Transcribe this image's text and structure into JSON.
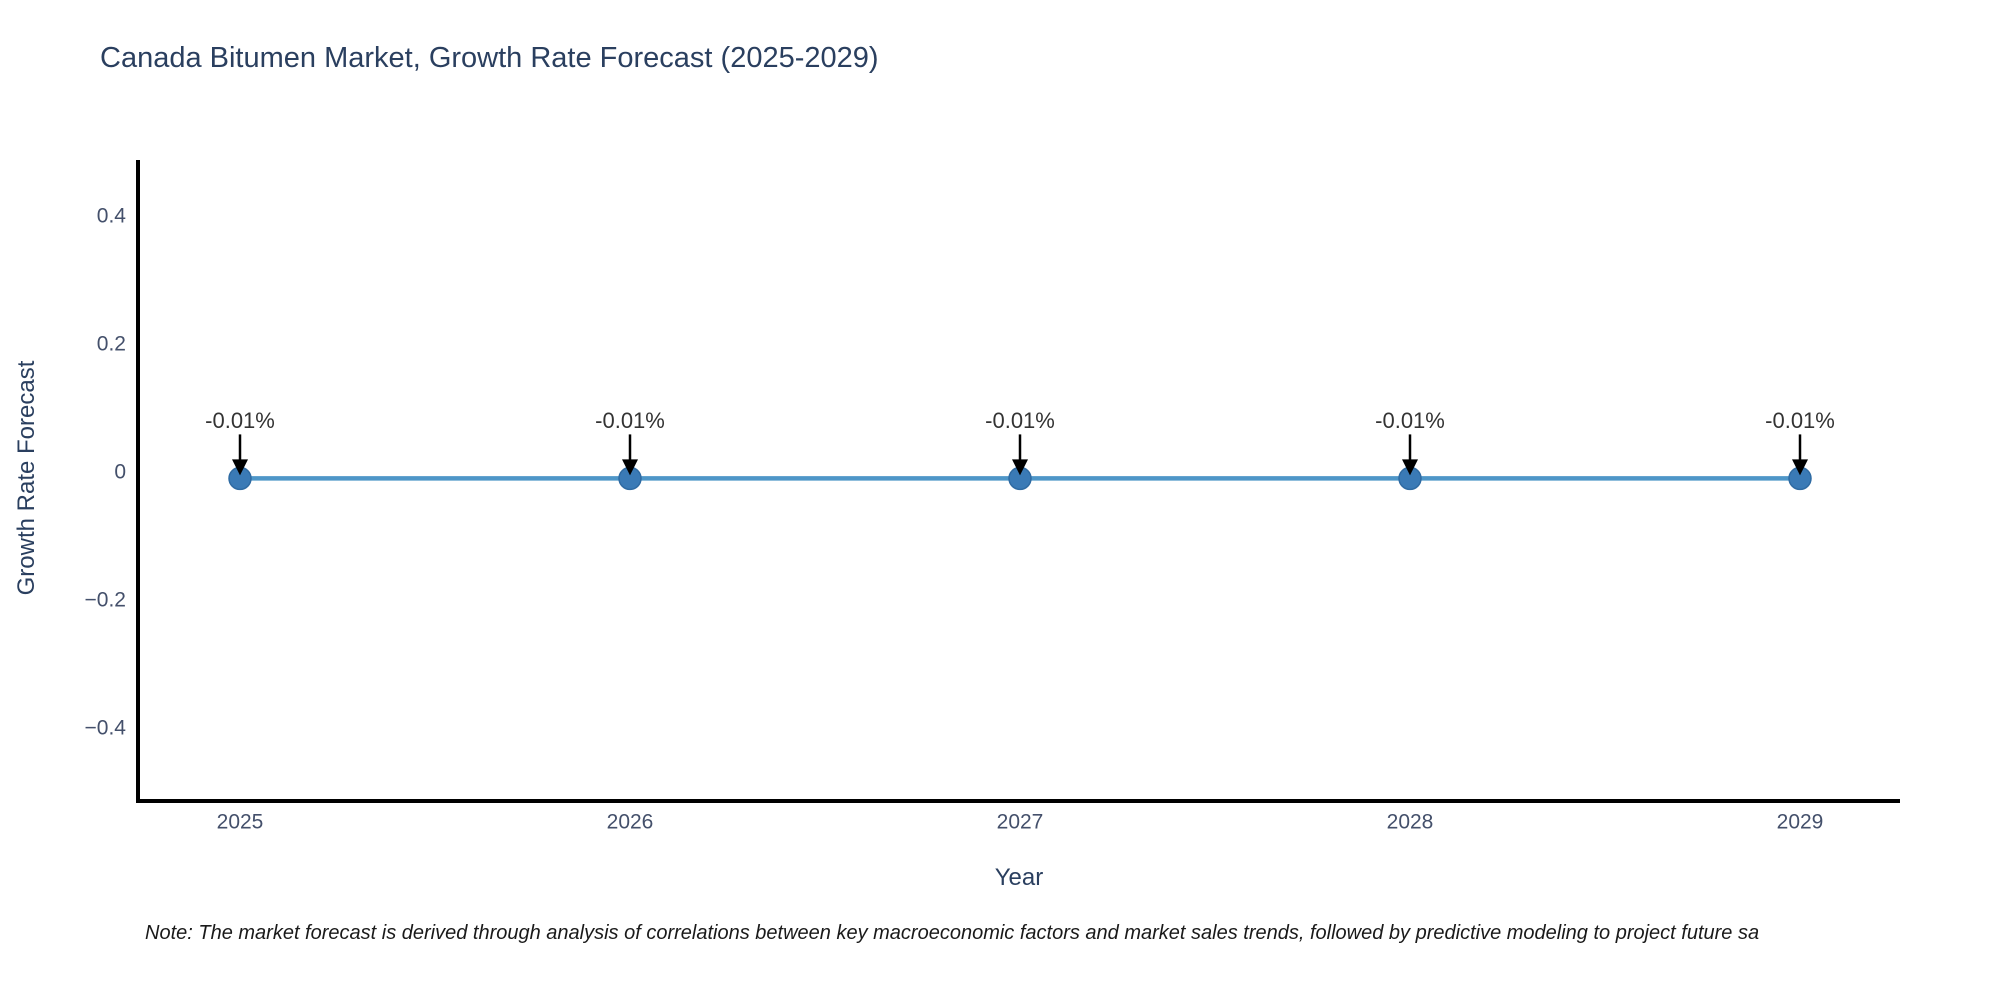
{
  "chart_data": {
    "type": "line",
    "title": "Canada Bitumen Market, Growth Rate Forecast (2025-2029)",
    "xlabel": "Year",
    "ylabel": "Growth Rate Forecast",
    "x": [
      2025,
      2026,
      2027,
      2028,
      2029
    ],
    "x_tick_labels": [
      "2025",
      "2026",
      "2027",
      "2028",
      "2029"
    ],
    "series": [
      {
        "name": "Growth Rate Forecast",
        "values": [
          -0.01,
          -0.01,
          -0.01,
          -0.01,
          -0.01
        ],
        "point_labels": [
          "-0.01%",
          "-0.01%",
          "-0.01%",
          "-0.01%",
          "-0.01%"
        ]
      }
    ],
    "ylim": [
      -0.5,
      0.5
    ],
    "yticks": [
      0.4,
      0.2,
      0,
      -0.2,
      -0.4
    ],
    "ytick_labels": [
      "0.4",
      "0.2",
      "0",
      "−0.2",
      "−0.4"
    ],
    "grid": false,
    "legend_position": "none",
    "colors": {
      "line": "#4e96c8",
      "marker_fill": "#3a7ab6",
      "marker_edge": "#2f6ba3",
      "axis": "#000000",
      "tick_text": "#44506b",
      "title_text": "#2a3f5f",
      "annotation_text": "#333333",
      "arrow": "#000000"
    }
  },
  "note": {
    "text": "Note: The market forecast is derived through analysis of correlations between key macroeconomic factors and market sales trends, followed by predictive modeling to project future sa"
  }
}
